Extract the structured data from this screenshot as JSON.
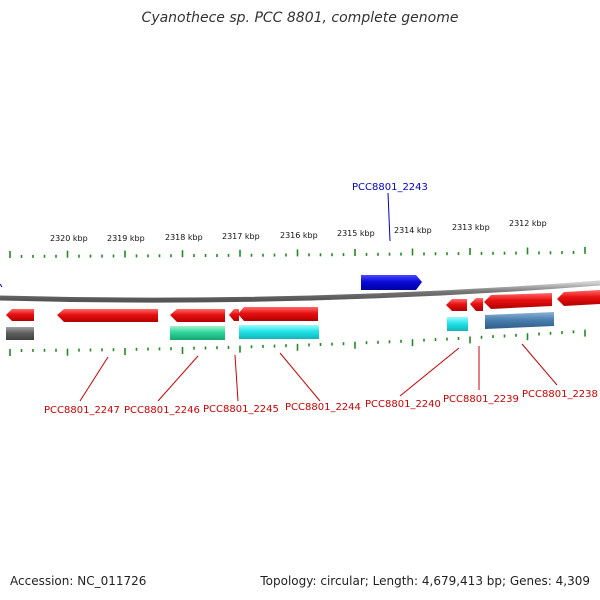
{
  "title": "Cyanothece sp. PCC 8801, complete genome",
  "footer": {
    "accession": "Accession: NC_011726",
    "topology": "Topology: circular; Length: 4,679,413 bp; Genes: 4,309"
  },
  "scale_labels": [
    "2320 kbp",
    "2319 kbp",
    "2318 kbp",
    "2317 kbp",
    "2316 kbp",
    "2315 kbp",
    "2314 kbp",
    "2313 kbp",
    "2312 kbp"
  ],
  "gene_labels": {
    "g2243": "PCC8801_2243",
    "g2247": "PCC8801_2247",
    "g2246": "PCC8801_2246",
    "g2245": "PCC8801_2245",
    "g2244": "PCC8801_2244",
    "g2240": "PCC8801_2240",
    "g2239": "PCC8801_2239",
    "g2238": "PCC8801_2238"
  },
  "colors": {
    "gene_red": "#e81010",
    "gene_blue": "#0a0ad8",
    "label_red": "#cc0000",
    "label_blue": "#0000cc",
    "backbone": "#888888",
    "tick_green": "#228b22",
    "cyan": "#22e5ea",
    "teal": "#2fd69a",
    "steel": "#4a80b0",
    "gray": "#606060"
  }
}
